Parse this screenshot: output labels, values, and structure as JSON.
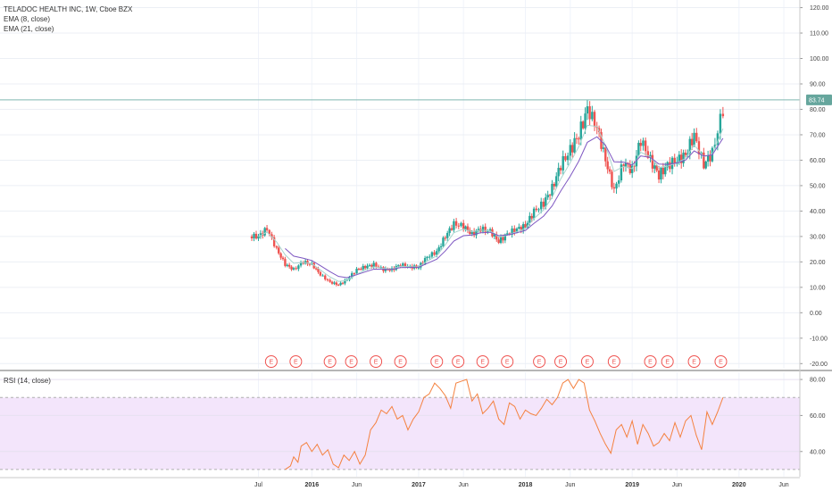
{
  "chart_data": [
    {
      "type": "candlestick",
      "title": "TELADOC HEALTH INC, 1W, Cboe BZX",
      "indicators": [
        "EMA (8, close)",
        "EMA (21, close)"
      ],
      "last_price_label": "83.74",
      "last_price": 83.74,
      "ylim": [
        -22,
        123
      ],
      "yticks": [
        120,
        110,
        100,
        90,
        80,
        70,
        60,
        50,
        40,
        30,
        20,
        10,
        0,
        -10,
        -20
      ],
      "ytick_labels": [
        "120.00",
        "110.00",
        "100.00",
        "90.00",
        "80.00",
        "70.00",
        "60.00",
        "50.00",
        "40.00",
        "30.00",
        "20.00",
        "10.00",
        "0.00",
        "-10.00",
        "-20.00"
      ],
      "x_axis_labels": [
        "Jul",
        "2016",
        "Jun",
        "2017",
        "Jun",
        "2018",
        "Jun",
        "2019",
        "Jun",
        "2020",
        "Jun"
      ],
      "x_axis_label_times": [
        2015.5,
        2016.0,
        2016.42,
        2017.0,
        2017.42,
        2018.0,
        2018.42,
        2019.0,
        2019.42,
        2020.0,
        2020.42
      ],
      "bold_year_labels": [
        "2016",
        "2017",
        "2018",
        "2019",
        "2020"
      ],
      "xlim": [
        2013.08,
        2020.57
      ],
      "price_series": {
        "t": [
          2015.5,
          2015.58,
          2015.67,
          2015.75,
          2015.83,
          2015.92,
          2016.0,
          2016.08,
          2016.17,
          2016.25,
          2016.33,
          2016.42,
          2016.5,
          2016.58,
          2016.67,
          2016.75,
          2016.83,
          2016.92,
          2017.0,
          2017.08,
          2017.17,
          2017.25,
          2017.33,
          2017.42,
          2017.5,
          2017.58,
          2017.67,
          2017.75,
          2017.83,
          2017.92,
          2018.0,
          2018.08,
          2018.17,
          2018.25,
          2018.33,
          2018.42,
          2018.5,
          2018.58,
          2018.67,
          2018.75,
          2018.83,
          2018.92,
          2019.0,
          2019.08,
          2019.17,
          2019.25,
          2019.33,
          2019.42,
          2019.5,
          2019.58,
          2019.67,
          2019.75,
          2019.85
        ],
        "close": [
          30,
          33,
          25,
          19,
          17,
          20,
          19,
          15,
          12,
          11,
          13,
          17,
          18,
          19,
          17,
          17,
          19,
          18,
          18,
          22,
          24,
          30,
          35,
          34,
          31,
          33,
          32,
          28,
          31,
          33,
          34,
          40,
          43,
          49,
          58,
          64,
          70,
          80,
          73,
          60,
          48,
          59,
          56,
          68,
          60,
          54,
          58,
          60,
          62,
          70,
          58,
          63,
          80
        ]
      },
      "events": {
        "label": "E",
        "t": [
          2015.62,
          2015.85,
          2016.17,
          2016.37,
          2016.6,
          2016.83,
          2017.17,
          2017.37,
          2017.6,
          2017.83,
          2018.13,
          2018.33,
          2018.58,
          2018.83,
          2019.17,
          2019.33,
          2019.58,
          2019.83
        ]
      }
    },
    {
      "type": "line",
      "title": "RSI (14, close)",
      "ylim": [
        26,
        84
      ],
      "yticks": [
        80,
        60,
        40
      ],
      "ytick_labels": [
        "80.00",
        "60.00",
        "40.00"
      ],
      "band": [
        30,
        70
      ],
      "series": [
        {
          "color": "#f4813f",
          "t": [
            2015.75,
            2015.8,
            2015.83,
            2015.87,
            2015.9,
            2015.95,
            2016.0,
            2016.05,
            2016.1,
            2016.15,
            2016.2,
            2016.25,
            2016.3,
            2016.35,
            2016.4,
            2016.45,
            2016.5,
            2016.55,
            2016.6,
            2016.65,
            2016.7,
            2016.75,
            2016.8,
            2016.85,
            2016.9,
            2016.95,
            2017.0,
            2017.05,
            2017.1,
            2017.15,
            2017.2,
            2017.25,
            2017.3,
            2017.35,
            2017.4,
            2017.45,
            2017.5,
            2017.55,
            2017.6,
            2017.65,
            2017.7,
            2017.75,
            2017.8,
            2017.85,
            2017.9,
            2017.95,
            2018.0,
            2018.05,
            2018.1,
            2018.15,
            2018.2,
            2018.25,
            2018.3,
            2018.35,
            2018.4,
            2018.45,
            2018.5,
            2018.55,
            2018.6,
            2018.65,
            2018.7,
            2018.75,
            2018.8,
            2018.85,
            2018.9,
            2018.95,
            2019.0,
            2019.05,
            2019.1,
            2019.15,
            2019.2,
            2019.25,
            2019.3,
            2019.35,
            2019.4,
            2019.45,
            2019.5,
            2019.55,
            2019.6,
            2019.65,
            2019.7,
            2019.75,
            2019.8,
            2019.85
          ],
          "values": [
            30,
            32,
            37,
            34,
            43,
            45,
            40,
            44,
            38,
            41,
            33,
            31,
            38,
            35,
            40,
            33,
            38,
            52,
            56,
            63,
            61,
            65,
            58,
            60,
            52,
            58,
            62,
            70,
            72,
            78,
            75,
            71,
            64,
            78,
            79,
            80,
            68,
            72,
            61,
            64,
            68,
            58,
            55,
            67,
            65,
            58,
            63,
            61,
            60,
            64,
            69,
            66,
            70,
            78,
            80,
            75,
            80,
            78,
            63,
            57,
            50,
            44,
            39,
            52,
            55,
            48,
            57,
            44,
            55,
            50,
            43,
            45,
            50,
            46,
            56,
            48,
            57,
            60,
            49,
            41,
            62,
            55,
            62,
            70
          ]
        }
      ]
    }
  ]
}
